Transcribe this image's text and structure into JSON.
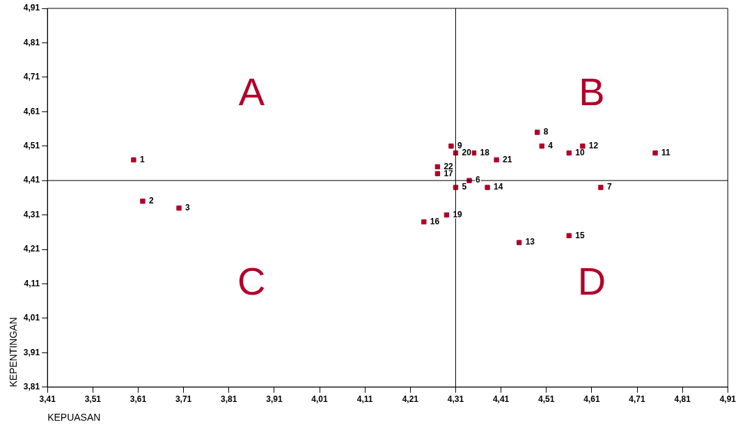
{
  "chart_data": {
    "type": "scatter",
    "xlabel": "KEPUASAN",
    "ylabel": "KEPENTINGAN",
    "x": [
      3.6,
      3.62,
      3.7,
      4.5,
      4.31,
      4.34,
      4.63,
      4.49,
      4.3,
      4.56,
      4.75,
      4.59,
      4.45,
      4.38,
      4.56,
      4.24,
      4.27,
      4.35,
      4.29,
      4.31,
      4.4,
      4.27
    ],
    "values": [
      4.47,
      4.35,
      4.33,
      4.51,
      4.39,
      4.41,
      4.39,
      4.55,
      4.51,
      4.49,
      4.49,
      4.51,
      4.23,
      4.39,
      4.25,
      4.29,
      4.43,
      4.49,
      4.31,
      4.49,
      4.47,
      4.45
    ],
    "color": "#b0002a",
    "marker": "square",
    "grid": false,
    "legend": false,
    "xlim": [
      3.41,
      4.91
    ],
    "ylim": [
      3.81,
      4.91
    ],
    "xticks": [
      {
        "value": 3.41,
        "label": "3,41"
      },
      {
        "value": 3.51,
        "label": "3,51"
      },
      {
        "value": 3.61,
        "label": "3,61"
      },
      {
        "value": 3.71,
        "label": "3,71"
      },
      {
        "value": 3.81,
        "label": "3,81"
      },
      {
        "value": 3.91,
        "label": "3,91"
      },
      {
        "value": 4.01,
        "label": "4,01"
      },
      {
        "value": 4.11,
        "label": "4,11"
      },
      {
        "value": 4.21,
        "label": "4,21"
      },
      {
        "value": 4.31,
        "label": "4,31"
      },
      {
        "value": 4.41,
        "label": "4,41"
      },
      {
        "value": 4.51,
        "label": "4,51"
      },
      {
        "value": 4.61,
        "label": "4,61"
      },
      {
        "value": 4.71,
        "label": "4,71"
      },
      {
        "value": 4.81,
        "label": "4,81"
      },
      {
        "value": 4.91,
        "label": "4,91"
      }
    ],
    "yticks": [
      {
        "value": 3.81,
        "label": "3,81"
      },
      {
        "value": 3.91,
        "label": "3,91"
      },
      {
        "value": 4.01,
        "label": "4,01"
      },
      {
        "value": 4.11,
        "label": "4,11"
      },
      {
        "value": 4.21,
        "label": "4,21"
      },
      {
        "value": 4.31,
        "label": "4,31"
      },
      {
        "value": 4.41,
        "label": "4,41"
      },
      {
        "value": 4.51,
        "label": "4,51"
      },
      {
        "value": 4.61,
        "label": "4,61"
      },
      {
        "value": 4.71,
        "label": "4,71"
      },
      {
        "value": 4.81,
        "label": "4,81"
      },
      {
        "value": 4.91,
        "label": "4,91"
      }
    ],
    "ref_lines": [
      {
        "axis": "x",
        "value": 4.31,
        "color": "#000000"
      },
      {
        "axis": "y",
        "value": 4.41,
        "color": "#000000"
      }
    ],
    "annotations": [
      "A",
      "B",
      "C",
      "D",
      {
        "text": "1",
        "x": 3.6,
        "y": 4.47
      },
      {
        "text": "2",
        "x": 3.62,
        "y": 4.35
      },
      {
        "text": "3",
        "x": 3.7,
        "y": 4.33
      },
      {
        "text": "4",
        "x": 4.5,
        "y": 4.51
      },
      {
        "text": "5",
        "x": 4.31,
        "y": 4.39
      },
      {
        "text": "6",
        "x": 4.34,
        "y": 4.41
      },
      {
        "text": "7",
        "x": 4.63,
        "y": 4.39
      },
      {
        "text": "8",
        "x": 4.49,
        "y": 4.55
      },
      {
        "text": "9",
        "x": 4.3,
        "y": 4.51
      },
      {
        "text": "10",
        "x": 4.56,
        "y": 4.49
      },
      {
        "text": "11",
        "x": 4.75,
        "y": 4.49
      },
      {
        "text": "12",
        "x": 4.59,
        "y": 4.51
      },
      {
        "text": "13",
        "x": 4.45,
        "y": 4.23
      },
      {
        "text": "14",
        "x": 4.38,
        "y": 4.39
      },
      {
        "text": "15",
        "x": 4.56,
        "y": 4.25
      },
      {
        "text": "16",
        "x": 4.24,
        "y": 4.29
      },
      {
        "text": "17",
        "x": 4.27,
        "y": 4.43
      },
      {
        "text": "18",
        "x": 4.35,
        "y": 4.49
      },
      {
        "text": "19",
        "x": 4.29,
        "y": 4.31
      },
      {
        "text": "20",
        "x": 4.31,
        "y": 4.49
      },
      {
        "text": "21",
        "x": 4.4,
        "y": 4.47
      },
      {
        "text": "22",
        "x": 4.27,
        "y": 4.45
      }
    ]
  }
}
